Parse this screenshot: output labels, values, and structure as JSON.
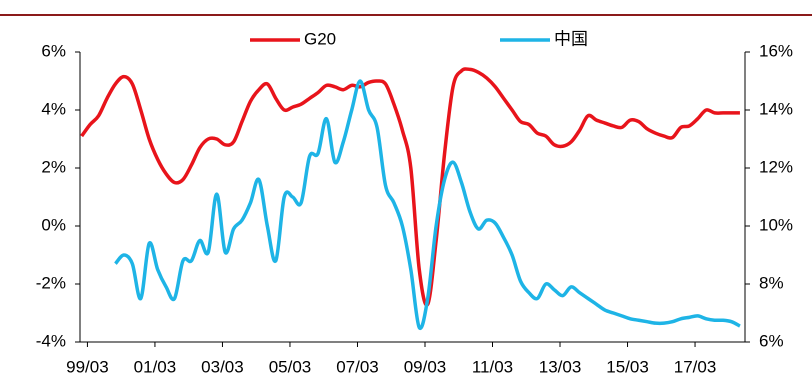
{
  "chart_data": {
    "type": "line",
    "x": [
      1999,
      1999.25,
      1999.5,
      1999.75,
      2000,
      2000.25,
      2000.5,
      2000.75,
      2001,
      2001.25,
      2001.5,
      2001.75,
      2002,
      2002.25,
      2002.5,
      2002.75,
      2003,
      2003.25,
      2003.5,
      2003.75,
      2004,
      2004.25,
      2004.5,
      2004.75,
      2005,
      2005.25,
      2005.5,
      2005.75,
      2006,
      2006.25,
      2006.5,
      2006.75,
      2007,
      2007.25,
      2007.5,
      2007.75,
      2008,
      2008.25,
      2008.5,
      2008.75,
      2009,
      2009.25,
      2009.5,
      2009.75,
      2010,
      2010.25,
      2010.5,
      2010.75,
      2011,
      2011.25,
      2011.5,
      2011.75,
      2012,
      2012.25,
      2012.5,
      2012.75,
      2013,
      2013.25,
      2013.5,
      2013.75,
      2014,
      2014.25,
      2014.5,
      2014.75,
      2015,
      2015.25,
      2015.5,
      2015.75,
      2016,
      2016.25,
      2016.5,
      2016.75,
      2017,
      2017.25,
      2017.5,
      2017.75,
      2018,
      2018.25,
      2018.5
    ],
    "series": [
      {
        "name": "G20",
        "color": "#e8141b",
        "values": [
          3.1,
          3.5,
          3.8,
          4.4,
          4.9,
          5.15,
          4.9,
          4.0,
          3.0,
          2.3,
          1.8,
          1.5,
          1.6,
          2.1,
          2.7,
          3.0,
          3.0,
          2.8,
          2.9,
          3.6,
          4.3,
          4.7,
          4.9,
          4.4,
          4.0,
          4.1,
          4.2,
          4.4,
          4.6,
          4.85,
          4.8,
          4.7,
          4.85,
          4.8,
          4.95,
          5.0,
          4.9,
          4.2,
          3.3,
          2.0,
          -1.5,
          -2.7,
          -0.5,
          2.5,
          4.8,
          5.35,
          5.4,
          5.3,
          5.1,
          4.8,
          4.4,
          4.0,
          3.6,
          3.5,
          3.2,
          3.1,
          2.8,
          2.75,
          2.9,
          3.3,
          3.8,
          3.65,
          3.55,
          3.45,
          3.4,
          3.65,
          3.6,
          3.35,
          3.2,
          3.1,
          3.05,
          3.4,
          3.45,
          3.7,
          4.0,
          3.9,
          3.9,
          3.9,
          3.9
        ]
      },
      {
        "name": "中国",
        "color": "#1eb4e6",
        "axis": "y2",
        "values": [
          null,
          null,
          null,
          null,
          8.7,
          9.0,
          8.7,
          7.5,
          9.4,
          8.5,
          7.9,
          7.5,
          8.8,
          8.8,
          9.5,
          9.1,
          11.1,
          9.1,
          9.9,
          10.2,
          10.8,
          11.6,
          10.0,
          8.8,
          11.0,
          11.0,
          10.8,
          12.4,
          12.5,
          13.7,
          12.2,
          12.9,
          14.0,
          15.0,
          14.0,
          13.4,
          11.4,
          10.8,
          10.0,
          8.5,
          6.5,
          7.5,
          10.0,
          11.6,
          12.2,
          11.5,
          10.5,
          9.9,
          10.2,
          10.1,
          9.6,
          9.0,
          8.1,
          7.7,
          7.5,
          8.0,
          7.8,
          7.6,
          7.9,
          7.7,
          7.5,
          7.3,
          7.1,
          7.0,
          6.9,
          6.8,
          6.75,
          6.7,
          6.65,
          6.65,
          6.7,
          6.8,
          6.85,
          6.9,
          6.8,
          6.75,
          6.75,
          6.7,
          6.55
        ]
      }
    ],
    "xlim": [
      1998.95,
      2018.65
    ],
    "xticks": [
      {
        "value": 1999.17,
        "label": "99/03"
      },
      {
        "value": 2001.17,
        "label": "01/03"
      },
      {
        "value": 2003.17,
        "label": "03/03"
      },
      {
        "value": 2005.17,
        "label": "05/03"
      },
      {
        "value": 2007.17,
        "label": "07/03"
      },
      {
        "value": 2009.17,
        "label": "09/03"
      },
      {
        "value": 2011.17,
        "label": "11/03"
      },
      {
        "value": 2013.17,
        "label": "13/03"
      },
      {
        "value": 2015.17,
        "label": "15/03"
      },
      {
        "value": 2017.17,
        "label": "17/03"
      }
    ],
    "ylim": [
      -4,
      6
    ],
    "yticks": [
      {
        "value": -4,
        "label": "-4%"
      },
      {
        "value": -2,
        "label": "-2%"
      },
      {
        "value": 0,
        "label": "0%"
      },
      {
        "value": 2,
        "label": "2%"
      },
      {
        "value": 4,
        "label": "4%"
      },
      {
        "value": 6,
        "label": "6%"
      }
    ],
    "y2lim": [
      6,
      16
    ],
    "y2ticks": [
      {
        "value": 6,
        "label": "6%"
      },
      {
        "value": 8,
        "label": "8%"
      },
      {
        "value": 10,
        "label": "10%"
      },
      {
        "value": 12,
        "label": "12%"
      },
      {
        "value": 14,
        "label": "14%"
      },
      {
        "value": 16,
        "label": "16%"
      }
    ],
    "legend": "top"
  }
}
